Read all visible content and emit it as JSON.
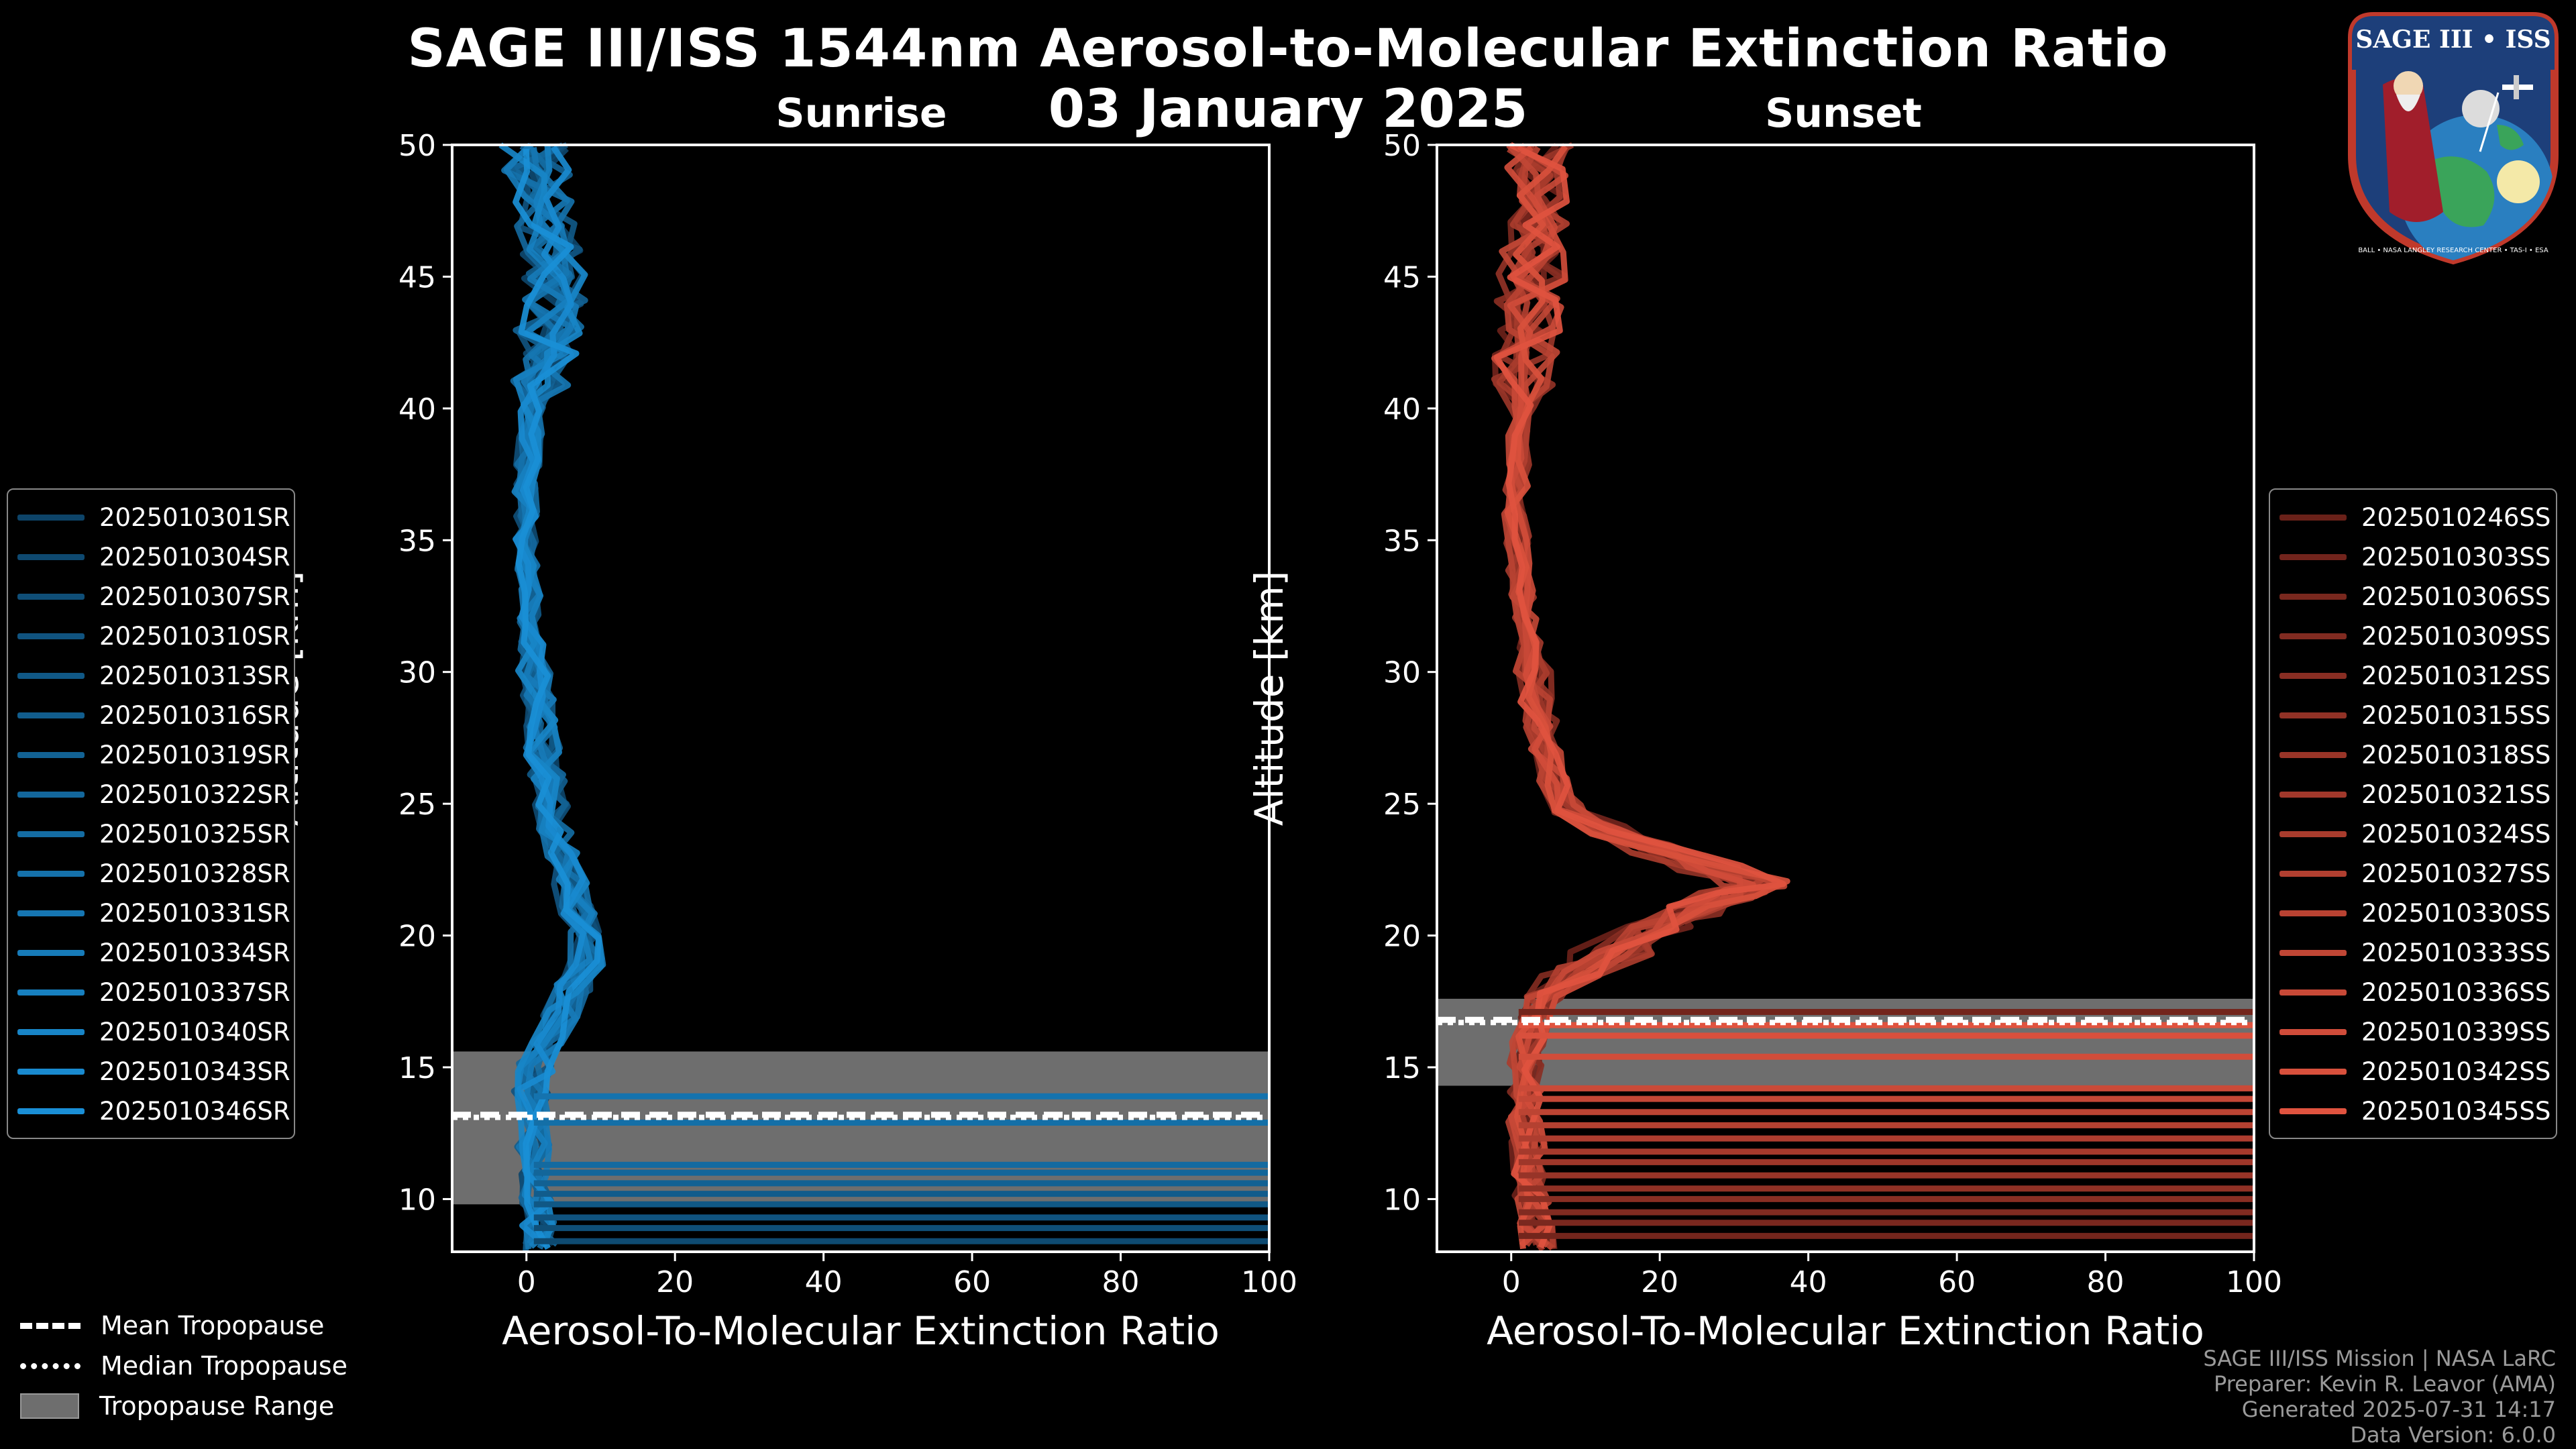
{
  "header": {
    "title": "SAGE III/ISS 1544nm Aerosol-to-Molecular Extinction Ratio",
    "date": "03 January 2025"
  },
  "colors": {
    "sunrise": "#1a8fd6",
    "sunset": "#e0533f",
    "tropo_band": "#6e6e6e"
  },
  "chart_data": [
    {
      "type": "line",
      "panel": "Sunrise",
      "title": "Sunrise",
      "xlabel": "Aerosol-To-Molecular Extinction Ratio",
      "ylabel": "Altitude [km]",
      "xlim": [
        -10,
        100
      ],
      "ylim": [
        8,
        50
      ],
      "xticks": [
        "0",
        "20",
        "40",
        "60",
        "80",
        "100"
      ],
      "yticks": [
        "10",
        "15",
        "20",
        "25",
        "30",
        "35",
        "40",
        "45",
        "50"
      ],
      "tropopause": {
        "mean_km": 13.2,
        "median_km": 13.1,
        "range_km": [
          9.8,
          15.6
        ]
      },
      "mean_profile": [
        [
          2,
          8.2
        ],
        [
          1.5,
          9
        ],
        [
          1,
          10
        ],
        [
          0.8,
          11
        ],
        [
          0.7,
          12
        ],
        [
          0.6,
          13
        ],
        [
          0.7,
          14
        ],
        [
          1.2,
          15
        ],
        [
          2.5,
          16
        ],
        [
          4.5,
          17
        ],
        [
          6.5,
          18
        ],
        [
          8,
          19
        ],
        [
          7.5,
          20
        ],
        [
          7,
          21
        ],
        [
          6,
          22
        ],
        [
          5,
          23
        ],
        [
          4,
          24
        ],
        [
          3.5,
          25
        ],
        [
          2.8,
          26
        ],
        [
          2.2,
          27
        ],
        [
          1.8,
          28
        ],
        [
          1.4,
          29
        ],
        [
          1,
          30
        ],
        [
          0.8,
          31
        ],
        [
          0.5,
          32
        ],
        [
          0.3,
          33
        ],
        [
          0.1,
          34
        ],
        [
          0,
          35
        ],
        [
          0,
          36
        ],
        [
          -0.3,
          37
        ],
        [
          0.2,
          38
        ],
        [
          0.5,
          39
        ],
        [
          0.8,
          40
        ],
        [
          1.5,
          41
        ],
        [
          2.5,
          42
        ],
        [
          3,
          43
        ],
        [
          4,
          44
        ],
        [
          3.5,
          45
        ],
        [
          3,
          46
        ],
        [
          2.5,
          47
        ],
        [
          2,
          48
        ],
        [
          1.5,
          49
        ],
        [
          1,
          50
        ]
      ],
      "series": [
        {
          "name": "2025010301SR",
          "values": []
        },
        {
          "name": "2025010304SR",
          "values": []
        },
        {
          "name": "2025010307SR",
          "values": []
        },
        {
          "name": "2025010310SR",
          "values": []
        },
        {
          "name": "2025010313SR",
          "values": []
        },
        {
          "name": "2025010316SR",
          "values": []
        },
        {
          "name": "2025010319SR",
          "values": []
        },
        {
          "name": "2025010322SR",
          "values": []
        },
        {
          "name": "2025010325SR",
          "values": []
        },
        {
          "name": "2025010328SR",
          "values": []
        },
        {
          "name": "2025010331SR",
          "values": []
        },
        {
          "name": "2025010334SR",
          "values": []
        },
        {
          "name": "2025010337SR",
          "values": []
        },
        {
          "name": "2025010340SR",
          "values": []
        },
        {
          "name": "2025010343SR",
          "values": []
        },
        {
          "name": "2025010346SR",
          "values": []
        }
      ],
      "low_level_spikes_km": [
        8.4,
        8.9,
        9.3,
        9.8,
        10.2,
        10.6,
        11.0,
        11.3,
        12.9,
        13.9
      ]
    },
    {
      "type": "line",
      "panel": "Sunset",
      "title": "Sunset",
      "xlabel": "Aerosol-To-Molecular Extinction Ratio",
      "ylabel": "Altitude [km]",
      "xlim": [
        -10,
        100
      ],
      "ylim": [
        8,
        50
      ],
      "xticks": [
        "0",
        "20",
        "40",
        "60",
        "80",
        "100"
      ],
      "yticks": [
        "10",
        "15",
        "20",
        "25",
        "30",
        "35",
        "40",
        "45",
        "50"
      ],
      "tropopause": {
        "mean_km": 16.8,
        "median_km": 16.7,
        "range_km": [
          14.3,
          17.6
        ]
      },
      "mean_profile": [
        [
          3.5,
          8.2
        ],
        [
          3.2,
          9
        ],
        [
          2.8,
          10
        ],
        [
          2.5,
          11
        ],
        [
          2.2,
          12
        ],
        [
          2,
          13
        ],
        [
          1.8,
          14
        ],
        [
          2,
          15
        ],
        [
          2.5,
          16
        ],
        [
          3,
          17
        ],
        [
          4.5,
          17.8
        ],
        [
          8,
          18.6
        ],
        [
          13,
          19.4
        ],
        [
          19,
          20.2
        ],
        [
          25,
          21
        ],
        [
          30,
          21.6
        ],
        [
          33,
          22
        ],
        [
          28,
          22.6
        ],
        [
          20,
          23.3
        ],
        [
          13,
          24
        ],
        [
          8,
          24.8
        ],
        [
          6,
          25.8
        ],
        [
          5,
          27
        ],
        [
          4,
          28
        ],
        [
          3.5,
          29
        ],
        [
          3,
          30
        ],
        [
          2.5,
          31
        ],
        [
          2,
          32
        ],
        [
          1.6,
          33
        ],
        [
          1.2,
          34
        ],
        [
          0.8,
          35
        ],
        [
          0.6,
          36
        ],
        [
          0.7,
          37
        ],
        [
          1,
          38
        ],
        [
          1.2,
          39
        ],
        [
          1.5,
          40
        ],
        [
          1.8,
          41
        ],
        [
          2,
          42
        ],
        [
          2.3,
          43
        ],
        [
          2.5,
          44
        ],
        [
          2.8,
          45
        ],
        [
          3,
          46
        ],
        [
          3.2,
          47
        ],
        [
          3.5,
          48
        ],
        [
          3.8,
          49
        ],
        [
          4,
          50
        ]
      ],
      "series": [
        {
          "name": "2025010246SS",
          "values": []
        },
        {
          "name": "2025010303SS",
          "values": []
        },
        {
          "name": "2025010306SS",
          "values": []
        },
        {
          "name": "2025010309SS",
          "values": []
        },
        {
          "name": "2025010312SS",
          "values": []
        },
        {
          "name": "2025010315SS",
          "values": []
        },
        {
          "name": "2025010318SS",
          "values": []
        },
        {
          "name": "2025010321SS",
          "values": []
        },
        {
          "name": "2025010324SS",
          "values": []
        },
        {
          "name": "2025010327SS",
          "values": []
        },
        {
          "name": "2025010330SS",
          "values": []
        },
        {
          "name": "2025010333SS",
          "values": []
        },
        {
          "name": "2025010336SS",
          "values": []
        },
        {
          "name": "2025010339SS",
          "values": []
        },
        {
          "name": "2025010342SS",
          "values": []
        },
        {
          "name": "2025010345SS",
          "values": []
        }
      ],
      "low_level_spikes_km": [
        8.6,
        9.1,
        9.5,
        10.0,
        10.4,
        10.9,
        11.4,
        11.8,
        12.3,
        12.8,
        13.3,
        13.8,
        14.2,
        15.4,
        16.2,
        16.6,
        17.1
      ]
    }
  ],
  "bottom_legend": {
    "mean": "Mean Tropopause",
    "median": "Median Tropopause",
    "range": "Tropopause Range"
  },
  "logo": {
    "name": "SAGE III • ISS",
    "ring_text": "BALL • NASA LANGLEY RESEARCH CENTER • TAS-I • ESA"
  },
  "footer": {
    "line1": "SAGE III/ISS Mission | NASA LaRC",
    "line2": "Preparer: Kevin R. Leavor (AMA)",
    "line3": "Generated 2025-07-31 14:17",
    "line4": "Data Version: 6.0.0"
  }
}
